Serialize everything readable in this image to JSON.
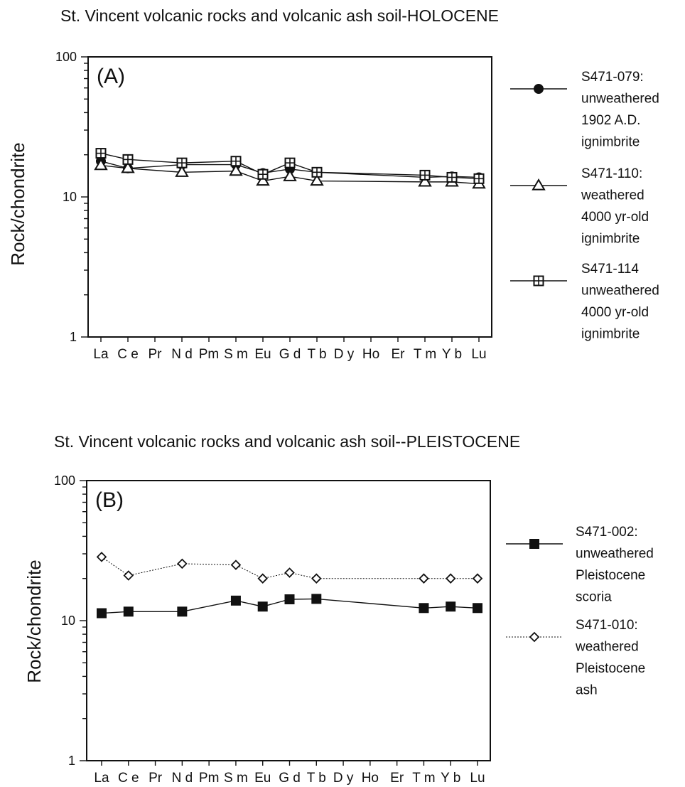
{
  "chart_data": [
    {
      "type": "line",
      "title": "St. Vincent volcanic rocks and volcanic ash soil-HOLOCENE",
      "panel_label": "(A)",
      "ylabel": "Rock/chondrite",
      "yscale": "log",
      "ylim": [
        1,
        100
      ],
      "yticks": [
        "1",
        "10",
        "100"
      ],
      "categories": [
        "La",
        "Ce",
        "Pr",
        "Nd",
        "Pm",
        "Sm",
        "Eu",
        "Gd",
        "Tb",
        "Dy",
        "Ho",
        "Er",
        "Tm",
        "Yb",
        "Lu"
      ],
      "category_labels": [
        "La",
        "C e",
        "Pr",
        "N d",
        "Pm",
        "S m",
        "Eu",
        "G d",
        "T b",
        "D y",
        "Ho",
        "Er",
        "T m",
        "Y b",
        "Lu"
      ],
      "legend_position": "right",
      "series": [
        {
          "name": "S471-079: unweathered 1902 A.D. ignimbrite",
          "legend_lines": [
            "S471-079:",
            "unweathered",
            "1902 A.D.",
            "ignimbrite"
          ],
          "marker": "filled-circle",
          "line": "solid",
          "values": [
            18,
            16,
            null,
            17,
            null,
            17,
            14.8,
            15.8,
            15,
            null,
            null,
            null,
            13.8,
            14,
            13.8
          ]
        },
        {
          "name": "S471-110: weathered 4000 yr-old ignimbrite",
          "legend_lines": [
            "S471-110:",
            "weathered",
            "4000 yr-old",
            "ignimbrite"
          ],
          "marker": "open-triangle",
          "line": "solid",
          "values": [
            16.8,
            16,
            null,
            15,
            null,
            15.3,
            13,
            14,
            13,
            null,
            null,
            null,
            12.8,
            12.8,
            12.4
          ]
        },
        {
          "name": "S471-114 unweathered 4000 yr-old ignimbrite",
          "legend_lines": [
            "S471-114",
            "unweathered",
            "4000 yr-old",
            "ignimbrite"
          ],
          "marker": "crossed-square",
          "line": "solid",
          "values": [
            20.5,
            18.5,
            null,
            17.5,
            null,
            18,
            14.5,
            17.5,
            15,
            null,
            null,
            null,
            14.3,
            13.8,
            13.5
          ]
        }
      ]
    },
    {
      "type": "line",
      "title": "St. Vincent volcanic rocks and volcanic ash soil--PLEISTOCENE",
      "panel_label": "(B)",
      "ylabel": "Rock/chondrite",
      "yscale": "log",
      "ylim": [
        1,
        100
      ],
      "yticks": [
        "1",
        "10",
        "100"
      ],
      "categories": [
        "La",
        "Ce",
        "Pr",
        "Nd",
        "Pm",
        "Sm",
        "Eu",
        "Gd",
        "Tb",
        "Dy",
        "Ho",
        "Er",
        "Tm",
        "Yb",
        "Lu"
      ],
      "category_labels": [
        "La",
        "C e",
        "Pr",
        "N d",
        "Pm",
        "S m",
        "Eu",
        "G d",
        "T b",
        "D y",
        "Ho",
        "Er",
        "T m",
        "Y b",
        "Lu"
      ],
      "legend_position": "right",
      "series": [
        {
          "name": "S471-002: unweathered Pleistocene scoria",
          "legend_lines": [
            "S471-002:",
            "unweathered",
            "Pleistocene",
            "scoria"
          ],
          "marker": "filled-square",
          "line": "solid",
          "values": [
            11.3,
            11.6,
            null,
            11.6,
            null,
            13.9,
            12.6,
            14.2,
            14.3,
            null,
            null,
            null,
            12.3,
            12.6,
            12.3
          ]
        },
        {
          "name": "S471-010: weathered Pleistocene ash",
          "legend_lines": [
            "S471-010:",
            "weathered",
            "Pleistocene",
            "ash"
          ],
          "marker": "open-diamond",
          "line": "dotted",
          "values": [
            28.5,
            21,
            null,
            25.5,
            null,
            25,
            20,
            22,
            20,
            null,
            null,
            null,
            20,
            20,
            20
          ]
        }
      ]
    }
  ]
}
